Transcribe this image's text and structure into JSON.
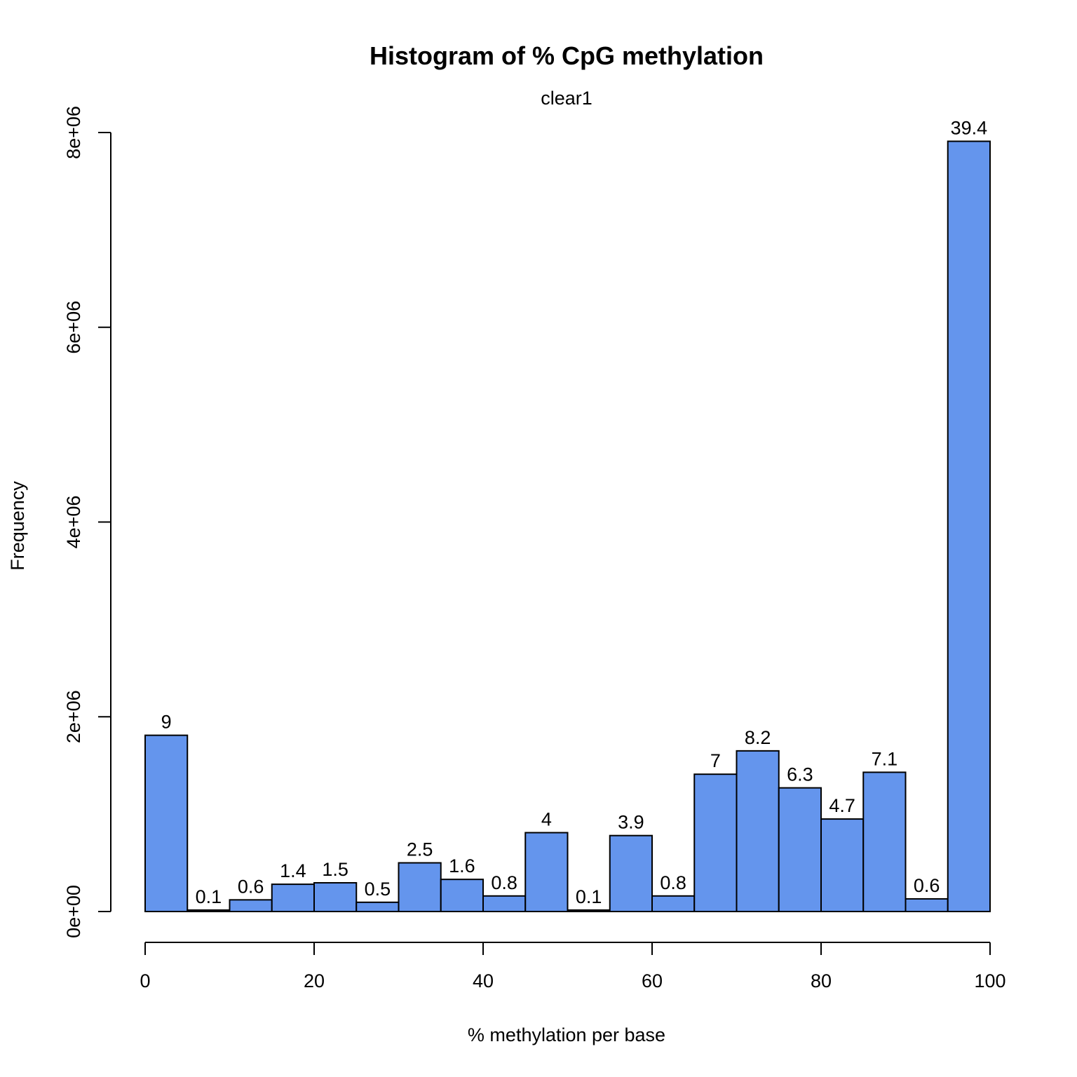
{
  "chart_data": {
    "type": "bar",
    "title": "Histogram of % CpG methylation",
    "subtitle": "clear1",
    "xlabel": "% methylation per base",
    "ylabel": "Frequency",
    "xlim": [
      0,
      100
    ],
    "ylim": [
      0,
      8000000
    ],
    "x_ticks": [
      0,
      20,
      40,
      60,
      80,
      100
    ],
    "x_tick_labels": [
      "0",
      "20",
      "40",
      "60",
      "80",
      "100"
    ],
    "y_ticks": [
      0,
      2000000,
      4000000,
      6000000,
      8000000
    ],
    "y_tick_labels": [
      "0e+00",
      "2e+06",
      "4e+06",
      "6e+06",
      "8e+06"
    ],
    "bar_color": "#6495ed",
    "bins": [
      {
        "start": 0,
        "end": 5,
        "value": 1810000,
        "label": "9"
      },
      {
        "start": 5,
        "end": 10,
        "value": 15000,
        "label": "0.1"
      },
      {
        "start": 10,
        "end": 15,
        "value": 120000,
        "label": "0.6"
      },
      {
        "start": 15,
        "end": 20,
        "value": 280000,
        "label": "1.4"
      },
      {
        "start": 20,
        "end": 25,
        "value": 295000,
        "label": "1.5"
      },
      {
        "start": 25,
        "end": 30,
        "value": 95000,
        "label": "0.5"
      },
      {
        "start": 30,
        "end": 35,
        "value": 500000,
        "label": "2.5"
      },
      {
        "start": 35,
        "end": 40,
        "value": 330000,
        "label": "1.6"
      },
      {
        "start": 40,
        "end": 45,
        "value": 160000,
        "label": "0.8"
      },
      {
        "start": 45,
        "end": 50,
        "value": 810000,
        "label": "4"
      },
      {
        "start": 50,
        "end": 55,
        "value": 15000,
        "label": "0.1"
      },
      {
        "start": 55,
        "end": 60,
        "value": 780000,
        "label": "3.9"
      },
      {
        "start": 60,
        "end": 65,
        "value": 160000,
        "label": "0.8"
      },
      {
        "start": 65,
        "end": 70,
        "value": 1410000,
        "label": "7"
      },
      {
        "start": 70,
        "end": 75,
        "value": 1650000,
        "label": "8.2"
      },
      {
        "start": 75,
        "end": 80,
        "value": 1270000,
        "label": "6.3"
      },
      {
        "start": 80,
        "end": 85,
        "value": 950000,
        "label": "4.7"
      },
      {
        "start": 85,
        "end": 90,
        "value": 1430000,
        "label": "7.1"
      },
      {
        "start": 90,
        "end": 95,
        "value": 130000,
        "label": "0.6"
      },
      {
        "start": 95,
        "end": 100,
        "value": 7910000,
        "label": "39.4"
      }
    ]
  }
}
